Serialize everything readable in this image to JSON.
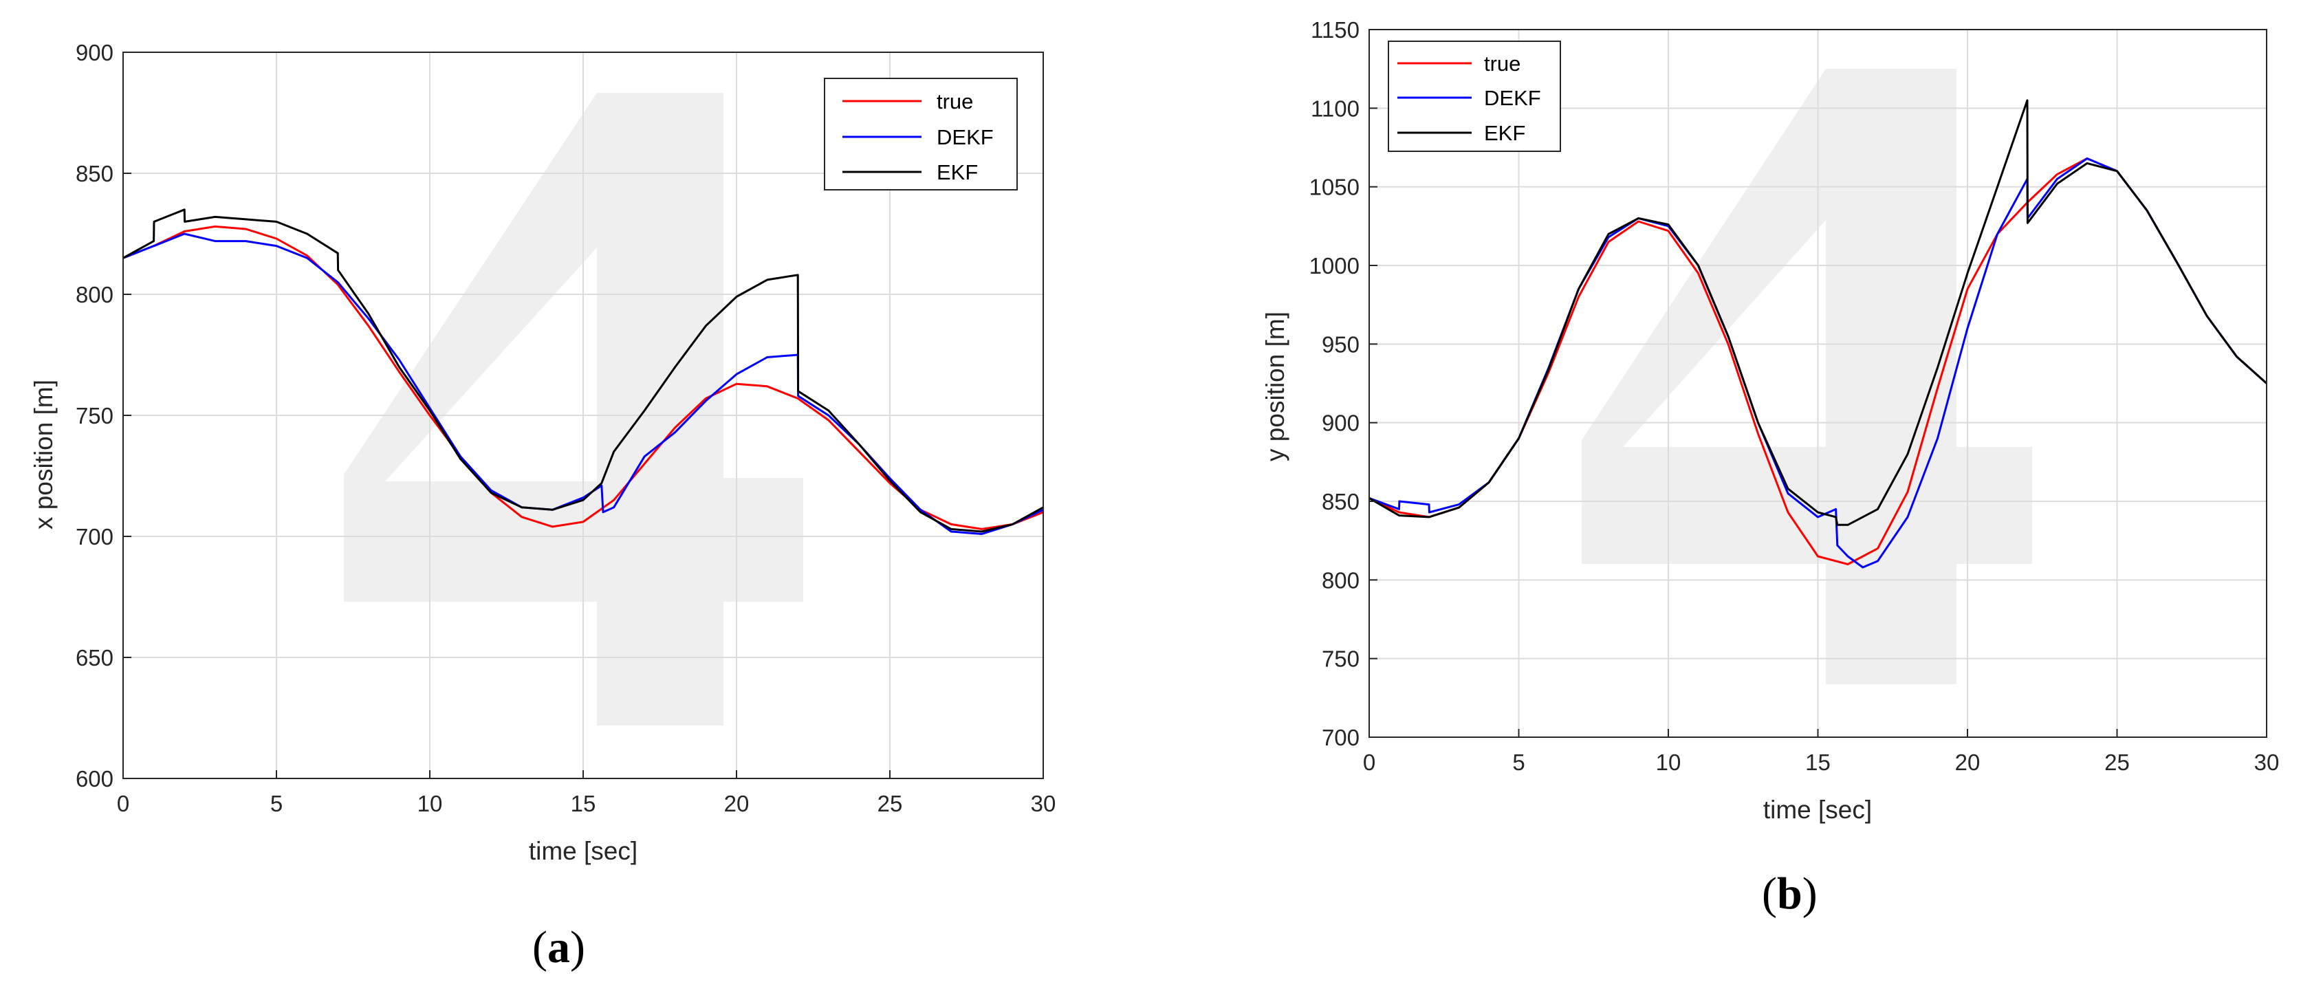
{
  "colors": {
    "true": "#ff0000",
    "DEKF": "#0000ff",
    "EKF": "#000000",
    "grid": "#dcdcdc",
    "watermark": "#efefef"
  },
  "chart_data": [
    {
      "type": "line",
      "panel": "a",
      "panel_label": "a",
      "xlabel": "time [sec]",
      "ylabel": "x position [m]",
      "xlim": [
        0,
        30
      ],
      "ylim": [
        600,
        900
      ],
      "xticks": [
        0,
        5,
        10,
        15,
        20,
        25,
        30
      ],
      "yticks": [
        600,
        650,
        700,
        750,
        800,
        850,
        900
      ],
      "grid": true,
      "legend_position": "top-right",
      "series": [
        {
          "name": "true",
          "color": "#ff0000",
          "x": [
            0,
            1,
            2,
            3,
            4,
            5,
            6,
            7,
            8,
            9,
            10,
            11,
            12,
            13,
            14,
            15,
            16,
            17,
            18,
            19,
            20,
            21,
            22,
            23,
            24,
            25,
            26,
            27,
            28,
            29,
            30
          ],
          "y": [
            815,
            820,
            826,
            828,
            827,
            823,
            816,
            804,
            787,
            768,
            750,
            733,
            718,
            708,
            704,
            706,
            715,
            730,
            745,
            757,
            763,
            762,
            757,
            748,
            735,
            722,
            711,
            705,
            703,
            705,
            710
          ]
        },
        {
          "name": "DEKF",
          "color": "#0000ff",
          "x": [
            0,
            1,
            1.01,
            2,
            3,
            4,
            5,
            6,
            7,
            8,
            9,
            10,
            11,
            12,
            13,
            14,
            15,
            15.6,
            15.65,
            16,
            17,
            18,
            19,
            20,
            21,
            22,
            22.01,
            23,
            24,
            25,
            26,
            27,
            28,
            29,
            30
          ],
          "y": [
            815,
            820,
            820,
            825,
            822,
            822,
            820,
            815,
            805,
            790,
            773,
            753,
            733,
            719,
            712,
            711,
            716,
            721,
            710,
            712,
            733,
            743,
            756,
            767,
            774,
            775,
            758,
            750,
            738,
            724,
            711,
            702,
            701,
            705,
            711
          ]
        },
        {
          "name": "EKF",
          "color": "#000000",
          "x": [
            0,
            1,
            1.01,
            2,
            2.01,
            3,
            4,
            5,
            6,
            7,
            7.01,
            8,
            9,
            10,
            11,
            12,
            13,
            14,
            15,
            15.6,
            16,
            17,
            18,
            19,
            20,
            21,
            22,
            22.01,
            23,
            24,
            25,
            26,
            27,
            28,
            29,
            30
          ],
          "y": [
            815,
            822,
            830,
            835,
            830,
            832,
            831,
            830,
            825,
            817,
            810,
            792,
            770,
            752,
            732,
            718,
            712,
            711,
            715,
            722,
            735,
            752,
            770,
            787,
            799,
            806,
            808,
            760,
            752,
            738,
            723,
            710,
            703,
            702,
            705,
            712
          ]
        }
      ]
    },
    {
      "type": "line",
      "panel": "b",
      "panel_label": "b",
      "xlabel": "time [sec]",
      "ylabel": "y position [m]",
      "xlim": [
        0,
        30
      ],
      "ylim": [
        700,
        1150
      ],
      "xticks": [
        0,
        5,
        10,
        15,
        20,
        25,
        30
      ],
      "yticks": [
        700,
        750,
        800,
        850,
        900,
        950,
        1000,
        1050,
        1100,
        1150
      ],
      "grid": true,
      "legend_position": "top-left",
      "series": [
        {
          "name": "true",
          "color": "#ff0000",
          "x": [
            0,
            1,
            2,
            3,
            4,
            5,
            6,
            7,
            8,
            9,
            10,
            11,
            12,
            13,
            14,
            15,
            16,
            17,
            18,
            19,
            20,
            21,
            22,
            23,
            24,
            25,
            26,
            27,
            28,
            29,
            30
          ],
          "y": [
            852,
            843,
            840,
            846,
            862,
            890,
            932,
            980,
            1015,
            1028,
            1022,
            995,
            950,
            893,
            843,
            815,
            810,
            820,
            856,
            922,
            985,
            1020,
            1040,
            1058,
            1068,
            1060,
            1035,
            1002,
            968,
            942,
            925
          ]
        },
        {
          "name": "DEKF",
          "color": "#0000ff",
          "x": [
            0,
            1,
            1.01,
            2,
            2.01,
            3,
            4,
            5,
            6,
            7,
            8,
            9,
            10,
            11,
            12,
            13,
            14,
            15,
            15.6,
            15.65,
            16,
            16.5,
            17,
            18,
            19,
            20,
            21,
            22,
            22.01,
            23,
            24,
            25,
            26,
            27,
            28,
            29,
            30
          ],
          "y": [
            852,
            845,
            850,
            848,
            843,
            848,
            862,
            890,
            935,
            985,
            1018,
            1030,
            1025,
            1000,
            955,
            900,
            855,
            840,
            845,
            822,
            815,
            808,
            812,
            840,
            890,
            960,
            1020,
            1055,
            1030,
            1055,
            1068,
            1060,
            1035,
            1002,
            968,
            942,
            925
          ]
        },
        {
          "name": "EKF",
          "color": "#000000",
          "x": [
            0,
            1,
            2,
            3,
            4,
            5,
            6,
            7,
            8,
            9,
            10,
            11,
            12,
            13,
            14,
            15,
            15.6,
            15.65,
            16,
            17,
            18,
            19,
            20,
            21,
            22,
            22.01,
            23,
            24,
            25,
            26,
            27,
            28,
            29,
            30
          ],
          "y": [
            852,
            841,
            840,
            846,
            862,
            890,
            934,
            985,
            1020,
            1030,
            1026,
            1000,
            955,
            900,
            858,
            843,
            840,
            835,
            835,
            845,
            880,
            935,
            995,
            1050,
            1105,
            1027,
            1052,
            1065,
            1060,
            1035,
            1002,
            968,
            942,
            925
          ]
        }
      ]
    }
  ]
}
